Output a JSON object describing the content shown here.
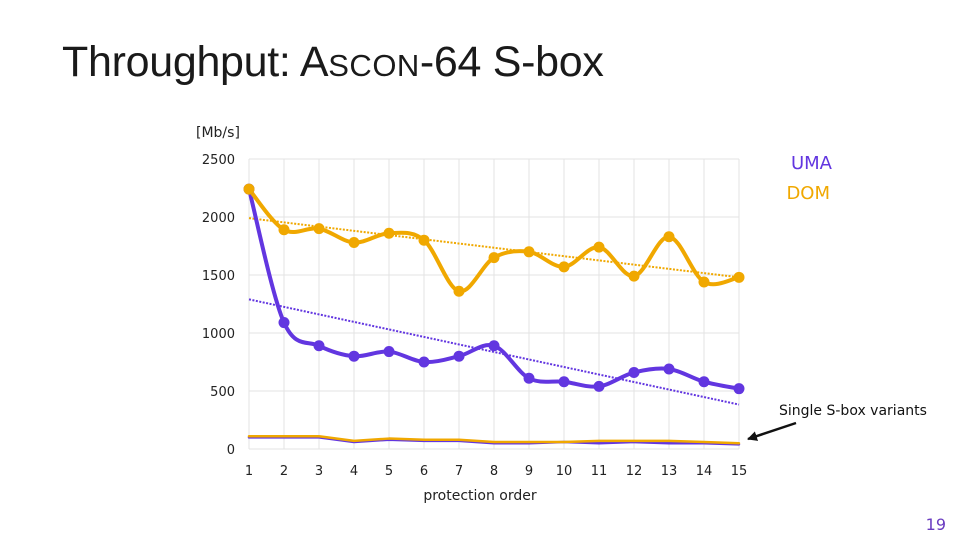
{
  "slide": {
    "title_prefix": "Throughput: A",
    "title_smallcaps": "SCON",
    "title_suffix": "-64 S-box",
    "page_number": "19"
  },
  "colors": {
    "uma": "#6236e0",
    "dom": "#f0a800",
    "grid": "#e3e3e3"
  },
  "chart_data": {
    "type": "line",
    "ylabel": "[Mb/s]",
    "xlabel": "protection order",
    "ylim": [
      0,
      2500
    ],
    "yticks": [
      0,
      500,
      1000,
      1500,
      2000,
      2500
    ],
    "x": [
      1,
      2,
      3,
      4,
      5,
      6,
      7,
      8,
      9,
      10,
      11,
      12,
      13,
      14,
      15
    ],
    "grid": true,
    "legend_position": "top-right",
    "series": [
      {
        "name": "UMA",
        "values": [
          2240,
          1090,
          890,
          800,
          840,
          750,
          800,
          890,
          610,
          580,
          540,
          660,
          690,
          580,
          520
        ],
        "trend": [
          1290,
          383
        ]
      },
      {
        "name": "DOM",
        "values": [
          2240,
          1890,
          1900,
          1780,
          1860,
          1800,
          1360,
          1650,
          1700,
          1570,
          1740,
          1490,
          1830,
          1440,
          1480
        ],
        "trend": [
          1990,
          1480
        ]
      },
      {
        "name": "",
        "values": [
          100,
          100,
          100,
          60,
          80,
          70,
          70,
          50,
          50,
          60,
          50,
          60,
          50,
          50,
          40
        ]
      },
      {
        "name": "",
        "values": [
          110,
          110,
          110,
          70,
          90,
          80,
          80,
          60,
          60,
          60,
          70,
          70,
          70,
          60,
          50
        ]
      }
    ],
    "annotation": "Single S-box variants"
  }
}
